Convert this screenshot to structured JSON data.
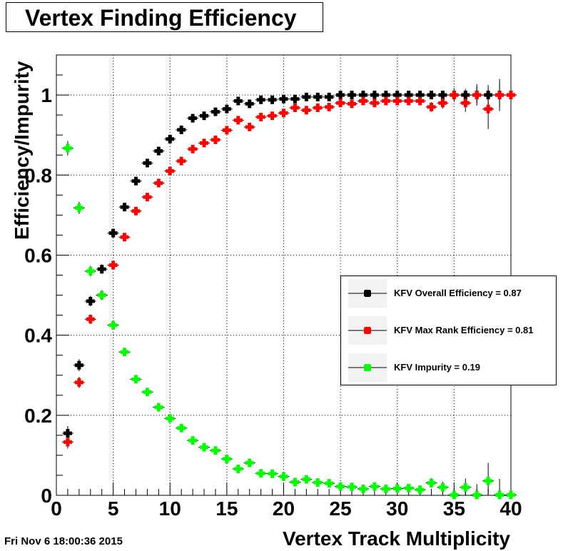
{
  "title": "Vertex Finding Efficiency",
  "timestamp": "Fri Nov  6 18:00:36 2015",
  "colors": {
    "series": [
      "#000000",
      "#ff0000",
      "#00ff00"
    ],
    "grid": "#000000"
  },
  "chart_data": {
    "type": "scatter",
    "title": "Vertex Finding Efficiency",
    "xlabel": "Vertex Track Multiplicity",
    "ylabel": "Efficiency/Impurity",
    "xlim": [
      0,
      40
    ],
    "ylim": [
      0,
      1.1
    ],
    "xticks": [
      "0",
      "5",
      "10",
      "15",
      "20",
      "25",
      "30",
      "35",
      "40"
    ],
    "yticks": [
      "0",
      "0.2",
      "0.4",
      "0.6",
      "0.8",
      "1"
    ],
    "grid": true,
    "legend_position": "right",
    "series": [
      {
        "name": "KFV Overall Efficiency = 0.87",
        "color": "#000000",
        "x": [
          1,
          2,
          3,
          4,
          5,
          6,
          7,
          8,
          9,
          10,
          11,
          12,
          13,
          14,
          15,
          16,
          17,
          18,
          19,
          20,
          21,
          22,
          23,
          24,
          25,
          26,
          27,
          28,
          29,
          30,
          31,
          32,
          33,
          34,
          35,
          36,
          37,
          38,
          39,
          40
        ],
        "y": [
          0.155,
          0.325,
          0.485,
          0.565,
          0.655,
          0.72,
          0.785,
          0.83,
          0.86,
          0.89,
          0.913,
          0.942,
          0.948,
          0.958,
          0.965,
          0.985,
          0.978,
          0.988,
          0.988,
          0.99,
          0.99,
          0.995,
          0.995,
          0.995,
          1,
          1,
          1,
          1,
          1,
          1,
          1,
          1,
          1,
          1,
          1,
          1,
          1,
          1,
          1,
          1
        ],
        "err": [
          0.018,
          0.015,
          0.013,
          0.012,
          0.011,
          0.01,
          0.01,
          0.009,
          0.009,
          0.008,
          0.008,
          0.007,
          0.007,
          0.007,
          0.006,
          0.006,
          0.006,
          0.006,
          0.006,
          0.006,
          0.005,
          0.005,
          0.005,
          0.005,
          0.005,
          0.005,
          0.005,
          0.005,
          0.005,
          0.006,
          0.006,
          0.007,
          0.008,
          0.01,
          0.012,
          0.015,
          0.02,
          0.025,
          0.03,
          0.04
        ]
      },
      {
        "name": "KFV Max Rank Efficiency = 0.81",
        "color": "#ff0000",
        "x": [
          1,
          2,
          3,
          4,
          5,
          6,
          7,
          8,
          9,
          10,
          11,
          12,
          13,
          14,
          15,
          16,
          17,
          18,
          19,
          20,
          21,
          22,
          23,
          24,
          25,
          26,
          27,
          28,
          29,
          30,
          31,
          32,
          33,
          34,
          35,
          36,
          37,
          38,
          39,
          40
        ],
        "y": [
          0.133,
          0.282,
          0.44,
          0.5,
          0.575,
          0.645,
          0.71,
          0.745,
          0.78,
          0.81,
          0.835,
          0.865,
          0.88,
          0.888,
          0.912,
          0.937,
          0.92,
          0.945,
          0.948,
          0.955,
          0.968,
          0.962,
          0.968,
          0.97,
          0.98,
          0.978,
          0.985,
          0.98,
          0.985,
          0.985,
          0.985,
          0.985,
          0.97,
          0.98,
          1,
          0.98,
          1,
          0.965,
          1,
          1
        ],
        "err": [
          0.016,
          0.014,
          0.012,
          0.012,
          0.011,
          0.01,
          0.01,
          0.009,
          0.009,
          0.008,
          0.008,
          0.008,
          0.007,
          0.007,
          0.007,
          0.007,
          0.007,
          0.006,
          0.006,
          0.006,
          0.006,
          0.006,
          0.006,
          0.006,
          0.006,
          0.006,
          0.007,
          0.007,
          0.008,
          0.008,
          0.009,
          0.01,
          0.012,
          0.014,
          0.017,
          0.022,
          0.027,
          0.05,
          0.04,
          0.05
        ]
      },
      {
        "name": "KFV Impurity = 0.19",
        "color": "#00ff00",
        "x": [
          1,
          2,
          3,
          4,
          5,
          6,
          7,
          8,
          9,
          10,
          11,
          12,
          13,
          14,
          15,
          16,
          17,
          18,
          19,
          20,
          21,
          22,
          23,
          24,
          25,
          26,
          27,
          28,
          29,
          30,
          31,
          32,
          33,
          34,
          35,
          36,
          37,
          38,
          39,
          40
        ],
        "y": [
          0.867,
          0.718,
          0.56,
          0.5,
          0.425,
          0.358,
          0.29,
          0.258,
          0.22,
          0.192,
          0.168,
          0.137,
          0.12,
          0.112,
          0.091,
          0.066,
          0.081,
          0.055,
          0.054,
          0.047,
          0.033,
          0.04,
          0.032,
          0.03,
          0.022,
          0.021,
          0.016,
          0.022,
          0.016,
          0.017,
          0.018,
          0.014,
          0.031,
          0.02,
          0.001,
          0.02,
          0.001,
          0.036,
          0.001,
          0.001
        ],
        "err": [
          0.018,
          0.015,
          0.013,
          0.012,
          0.011,
          0.01,
          0.009,
          0.009,
          0.008,
          0.008,
          0.008,
          0.007,
          0.007,
          0.007,
          0.006,
          0.006,
          0.006,
          0.006,
          0.006,
          0.006,
          0.006,
          0.006,
          0.006,
          0.006,
          0.006,
          0.006,
          0.007,
          0.007,
          0.008,
          0.008,
          0.009,
          0.01,
          0.012,
          0.014,
          0.017,
          0.022,
          0.027,
          0.045,
          0.04,
          0.05
        ]
      }
    ]
  }
}
